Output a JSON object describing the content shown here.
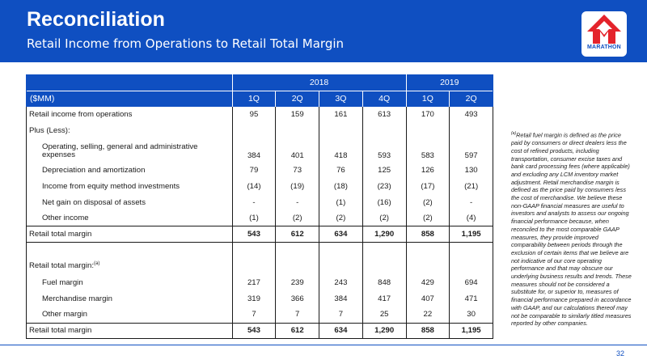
{
  "header": {
    "title": "Reconciliation",
    "subtitle": "Retail Income from Operations to Retail Total Margin",
    "logo_text": "MARATHON",
    "brand_color": "#0f4fc1",
    "logo_red": "#e4232b"
  },
  "table": {
    "years": [
      "2018",
      "2019"
    ],
    "unit_label": "($MM)",
    "quarters": [
      "1Q",
      "2Q",
      "3Q",
      "4Q",
      "1Q",
      "2Q"
    ],
    "rows": {
      "retail_income": {
        "label": "Retail income from operations",
        "values": [
          "95",
          "159",
          "161",
          "613",
          "170",
          "493"
        ]
      },
      "plus_less": {
        "label": "Plus (Less):"
      },
      "opex": {
        "label": "Operating, selling, general and administrative expenses",
        "values": [
          "384",
          "401",
          "418",
          "593",
          "583",
          "597"
        ]
      },
      "dep_amort": {
        "label": "Depreciation and amortization",
        "values": [
          "79",
          "73",
          "76",
          "125",
          "126",
          "130"
        ]
      },
      "equity_income": {
        "label": "Income from equity method investments",
        "values": [
          "(14)",
          "(19)",
          "(18)",
          "(23)",
          "(17)",
          "(21)"
        ]
      },
      "gain_disposal": {
        "label": "Net gain on disposal of assets",
        "values": [
          "-",
          "-",
          "(1)",
          "(16)",
          "(2)",
          "-"
        ]
      },
      "other_income": {
        "label": "Other income",
        "values": [
          "(1)",
          "(2)",
          "(2)",
          "(2)",
          "(2)",
          "(4)"
        ]
      },
      "total_margin_1": {
        "label": "Retail total margin",
        "values": [
          "543",
          "612",
          "634",
          "1,290",
          "858",
          "1,195"
        ]
      },
      "margin_section": {
        "label": "Retail total margin:",
        "note_marker": "(a)"
      },
      "fuel_margin": {
        "label": "Fuel margin",
        "values": [
          "217",
          "239",
          "243",
          "848",
          "429",
          "694"
        ]
      },
      "merch_margin": {
        "label": "Merchandise margin",
        "values": [
          "319",
          "366",
          "384",
          "417",
          "407",
          "471"
        ]
      },
      "other_margin": {
        "label": "Other margin",
        "values": [
          "7",
          "7",
          "7",
          "25",
          "22",
          "30"
        ]
      },
      "total_margin_2": {
        "label": "Retail total margin",
        "values": [
          "543",
          "612",
          "634",
          "1,290",
          "858",
          "1,195"
        ]
      }
    }
  },
  "footnote": {
    "marker": "(a)",
    "text": "Retail fuel margin is defined as the price paid by consumers or direct dealers less the cost of refined products, including transportation, consumer excise taxes and bank card processing fees (where applicable) and excluding any LCM inventory market adjustment. Retail merchandise margin is defined as the price paid by consumers less the cost of merchandise. We believe these non-GAAP financial measures are useful to investors and analysts to assess our ongoing financial performance because, when reconciled to the most comparable GAAP measures, they provide improved comparability between periods through the exclusion of certain items that we believe are not indicative of our core operating performance and that may obscure our underlying business results and trends. These measures should not be considered a substitute for, or superior to, measures of financial performance prepared in accordance with GAAP, and our calculations thereof may not be comparable to similarly titled measures reported by other companies."
  },
  "page_number": "32"
}
